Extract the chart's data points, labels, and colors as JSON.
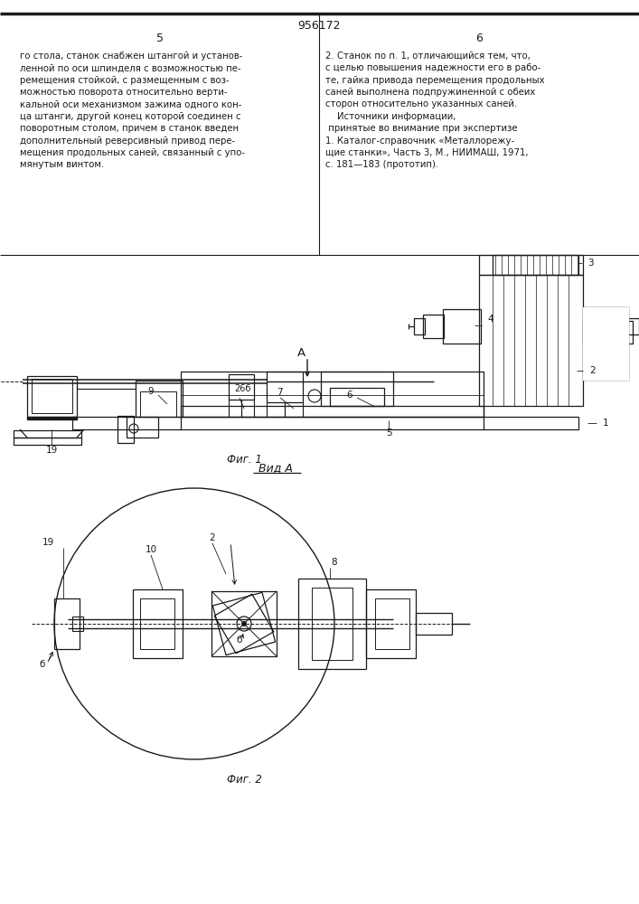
{
  "title": "956172",
  "page_left": "5",
  "page_right": "6",
  "bg_color": "#ffffff",
  "line_color": "#1a1a1a",
  "text_color": "#1a1a1a",
  "left_text": "го стола, станок снабжен штангой и установ-\nленной по оси шпинделя с возможностью пе-\nремещения стойкой, с размещенным с воз-\nможностью поворота относительно верти-\nкальной оси механизмом зажима одного кон-\nца штанги, другой конец которой соединен с\nповоротным столом, причем в станок введен\nдополнительный реверсивный привод пере-\nмещения продольных саней, связанный с упо-\nмянутым винтом.",
  "right_text": "2. Станок по п. 1, отличающийся тем, что,\nс целью повышения надежности его в рабо-\nте, гайка привода перемещения продольных\nсаней выполнена подпружиненной с обеих\nсторон относительно указанных саней.\n    Источники информации,\n принятые во внимание при экспертизе\n1. Каталог-справочник «Металлорежу-\nщие станки», Часть 3, М., НИИМАШ, 1971,\nс. 181—183 (прототип).",
  "fig1_caption": "Фиг. 1",
  "fig2_caption": "Фиг. 2",
  "view_caption": "Вид А"
}
